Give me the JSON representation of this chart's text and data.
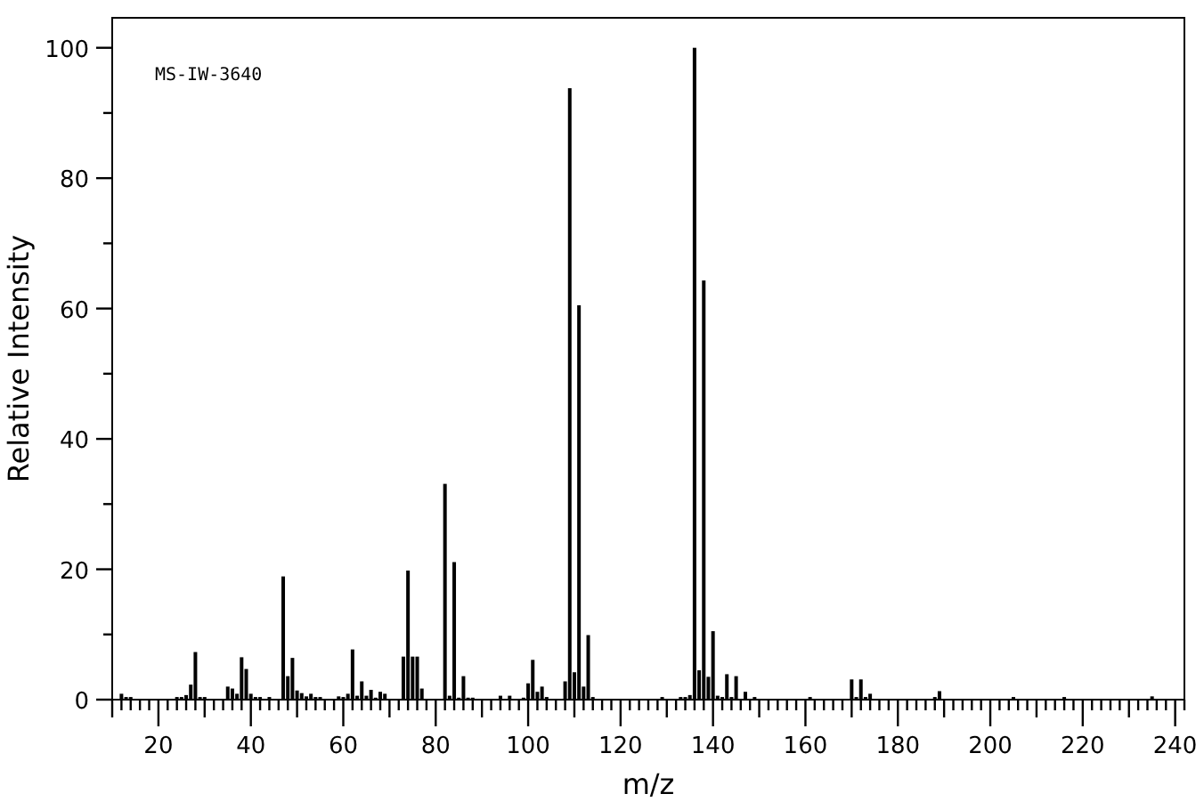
{
  "chart_data": {
    "type": "bar",
    "xlabel": "m/z",
    "ylabel": "Relative Intensity",
    "annotations": [
      "MS-IW-3640"
    ],
    "x": [
      12,
      13,
      14,
      24,
      25,
      26,
      27,
      28,
      29,
      30,
      35,
      36,
      37,
      38,
      39,
      40,
      41,
      42,
      44,
      47,
      48,
      49,
      50,
      51,
      52,
      53,
      54,
      55,
      59,
      60,
      61,
      62,
      63,
      64,
      65,
      66,
      67,
      68,
      69,
      73,
      74,
      75,
      76,
      77,
      82,
      83,
      84,
      85,
      86,
      87,
      88,
      94,
      96,
      99,
      100,
      101,
      102,
      103,
      104,
      108,
      109,
      110,
      111,
      112,
      113,
      114,
      129,
      133,
      134,
      135,
      136,
      137,
      138,
      139,
      140,
      141,
      142,
      143,
      144,
      145,
      147,
      149,
      161,
      170,
      171,
      172,
      173,
      174,
      188,
      189,
      205,
      216,
      235
    ],
    "series": [
      {
        "color": "#000000",
        "values": [
          0.9,
          0.4,
          0.4,
          0.4,
          0.4,
          0.7,
          2.3,
          7.3,
          0.4,
          0.4,
          2.0,
          1.7,
          0.9,
          6.5,
          4.7,
          0.9,
          0.4,
          0.4,
          0.4,
          18.9,
          3.6,
          6.4,
          1.4,
          1.0,
          0.5,
          0.9,
          0.4,
          0.4,
          0.5,
          0.4,
          0.9,
          7.7,
          0.6,
          2.8,
          0.6,
          1.5,
          0.3,
          1.2,
          0.9,
          6.6,
          19.8,
          6.6,
          6.6,
          1.7,
          33.1,
          0.6,
          21.1,
          0.3,
          3.6,
          0.3,
          0.3,
          0.6,
          0.6,
          0.3,
          2.5,
          6.1,
          1.2,
          2.0,
          0.4,
          2.8,
          93.8,
          4.2,
          60.5,
          2.0,
          9.9,
          0.4,
          0.4,
          0.4,
          0.4,
          0.7,
          100,
          4.5,
          64.3,
          3.5,
          10.5,
          0.6,
          0.4,
          3.9,
          0.4,
          3.6,
          1.2,
          0.4,
          0.4,
          3.1,
          0.4,
          3.1,
          0.4,
          0.9,
          0.4,
          1.3,
          0.4,
          0.4,
          0.5
        ]
      }
    ],
    "xlim": [
      10,
      242
    ],
    "ylim": [
      0,
      104.6
    ],
    "xticks": [
      {
        "value": 10,
        "label": null
      },
      {
        "value": 12,
        "label": null
      },
      {
        "value": 14,
        "label": null
      },
      {
        "value": 16,
        "label": null
      },
      {
        "value": 18,
        "label": null
      },
      20,
      {
        "value": 22,
        "label": null
      },
      {
        "value": 24,
        "label": null
      },
      {
        "value": 26,
        "label": null
      },
      {
        "value": 28,
        "label": null
      },
      {
        "value": 30,
        "label": null
      },
      {
        "value": 32,
        "label": null
      },
      {
        "value": 34,
        "label": null
      },
      {
        "value": 36,
        "label": null
      },
      {
        "value": 38,
        "label": null
      },
      40,
      {
        "value": 42,
        "label": null
      },
      {
        "value": 44,
        "label": null
      },
      {
        "value": 46,
        "label": null
      },
      {
        "value": 48,
        "label": null
      },
      {
        "value": 50,
        "label": null
      },
      {
        "value": 52,
        "label": null
      },
      {
        "value": 54,
        "label": null
      },
      {
        "value": 56,
        "label": null
      },
      {
        "value": 58,
        "label": null
      },
      60,
      {
        "value": 62,
        "label": null
      },
      {
        "value": 64,
        "label": null
      },
      {
        "value": 66,
        "label": null
      },
      {
        "value": 68,
        "label": null
      },
      {
        "value": 70,
        "label": null
      },
      {
        "value": 72,
        "label": null
      },
      {
        "value": 74,
        "label": null
      },
      {
        "value": 76,
        "label": null
      },
      {
        "value": 78,
        "label": null
      },
      80,
      {
        "value": 82,
        "label": null
      },
      {
        "value": 84,
        "label": null
      },
      {
        "value": 86,
        "label": null
      },
      {
        "value": 88,
        "label": null
      },
      {
        "value": 90,
        "label": null
      },
      {
        "value": 92,
        "label": null
      },
      {
        "value": 94,
        "label": null
      },
      {
        "value": 96,
        "label": null
      },
      {
        "value": 98,
        "label": null
      },
      100,
      {
        "value": 102,
        "label": null
      },
      {
        "value": 104,
        "label": null
      },
      {
        "value": 106,
        "label": null
      },
      {
        "value": 108,
        "label": null
      },
      {
        "value": 110,
        "label": null
      },
      {
        "value": 112,
        "label": null
      },
      {
        "value": 114,
        "label": null
      },
      {
        "value": 116,
        "label": null
      },
      {
        "value": 118,
        "label": null
      },
      120,
      {
        "value": 122,
        "label": null
      },
      {
        "value": 124,
        "label": null
      },
      {
        "value": 126,
        "label": null
      },
      {
        "value": 128,
        "label": null
      },
      {
        "value": 130,
        "label": null
      },
      {
        "value": 132,
        "label": null
      },
      {
        "value": 134,
        "label": null
      },
      {
        "value": 136,
        "label": null
      },
      {
        "value": 138,
        "label": null
      },
      140,
      {
        "value": 142,
        "label": null
      },
      {
        "value": 144,
        "label": null
      },
      {
        "value": 146,
        "label": null
      },
      {
        "value": 148,
        "label": null
      },
      {
        "value": 150,
        "label": null
      },
      {
        "value": 152,
        "label": null
      },
      {
        "value": 154,
        "label": null
      },
      {
        "value": 156,
        "label": null
      },
      {
        "value": 158,
        "label": null
      },
      160,
      {
        "value": 162,
        "label": null
      },
      {
        "value": 164,
        "label": null
      },
      {
        "value": 166,
        "label": null
      },
      {
        "value": 168,
        "label": null
      },
      {
        "value": 170,
        "label": null
      },
      {
        "value": 172,
        "label": null
      },
      {
        "value": 174,
        "label": null
      },
      {
        "value": 176,
        "label": null
      },
      {
        "value": 178,
        "label": null
      },
      180,
      {
        "value": 182,
        "label": null
      },
      {
        "value": 184,
        "label": null
      },
      {
        "value": 186,
        "label": null
      },
      {
        "value": 188,
        "label": null
      },
      {
        "value": 190,
        "label": null
      },
      {
        "value": 192,
        "label": null
      },
      {
        "value": 194,
        "label": null
      },
      {
        "value": 196,
        "label": null
      },
      {
        "value": 198,
        "label": null
      },
      200,
      {
        "value": 202,
        "label": null
      },
      {
        "value": 204,
        "label": null
      },
      {
        "value": 206,
        "label": null
      },
      {
        "value": 208,
        "label": null
      },
      {
        "value": 210,
        "label": null
      },
      {
        "value": 212,
        "label": null
      },
      {
        "value": 214,
        "label": null
      },
      {
        "value": 216,
        "label": null
      },
      {
        "value": 218,
        "label": null
      },
      220,
      {
        "value": 222,
        "label": null
      },
      {
        "value": 224,
        "label": null
      },
      {
        "value": 226,
        "label": null
      },
      {
        "value": 228,
        "label": null
      },
      {
        "value": 230,
        "label": null
      },
      {
        "value": 232,
        "label": null
      },
      {
        "value": 234,
        "label": null
      },
      {
        "value": 236,
        "label": null
      },
      {
        "value": 238,
        "label": null
      },
      240,
      {
        "value": 242,
        "label": null
      }
    ],
    "yticks": [
      0,
      {
        "value": 10,
        "label": null
      },
      20,
      {
        "value": 30,
        "label": null
      },
      40,
      {
        "value": 50,
        "label": null
      },
      60,
      {
        "value": 70,
        "label": null
      },
      80,
      {
        "value": 90,
        "label": null
      },
      100
    ]
  }
}
